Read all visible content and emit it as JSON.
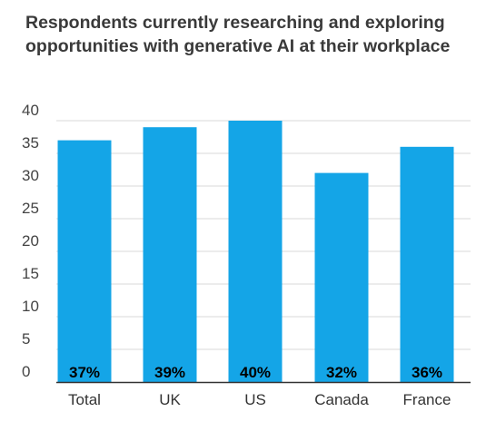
{
  "chart_data": {
    "type": "bar",
    "title": "Respondents currently researching and exploring opportunities with generative AI at their workplace",
    "categories": [
      "Total",
      "UK",
      "US",
      "Canada",
      "France"
    ],
    "values": [
      37,
      39,
      40,
      32,
      36
    ],
    "data_labels": [
      "37%",
      "39%",
      "40%",
      "32%",
      "36%"
    ],
    "y_ticks": [
      "0",
      "5",
      "10",
      "15",
      "20",
      "25",
      "30",
      "35",
      "40"
    ],
    "ylim": [
      0,
      40
    ],
    "xlabel": "",
    "ylabel": "",
    "grid": true,
    "bar_color": "#14a5e7",
    "gridline_color": "#d9d9d9",
    "axis_color": "#333333"
  }
}
